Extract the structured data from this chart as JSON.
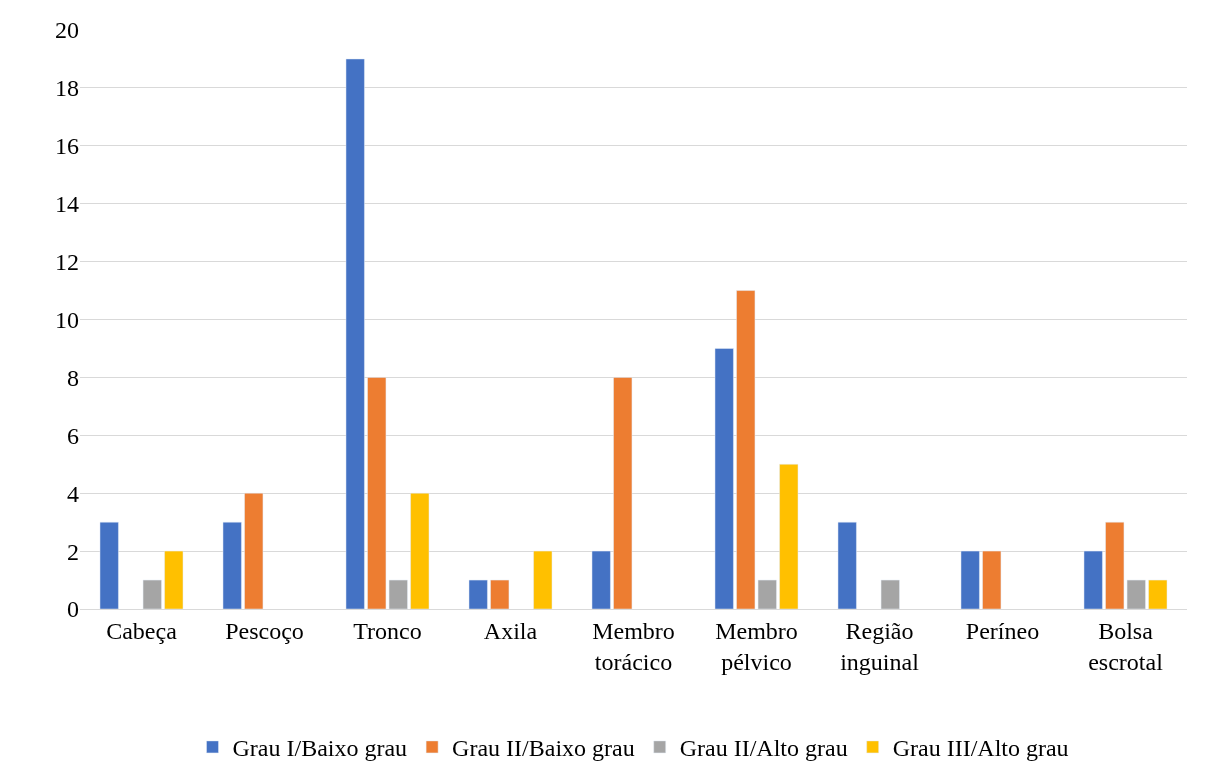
{
  "chart_data": {
    "type": "bar",
    "categories": [
      "Cabeça",
      "Pescoço",
      "Tronco",
      "Axila",
      "Membro torácico",
      "Membro pélvico",
      "Região inguinal",
      "Períneo",
      "Bolsa escrotal"
    ],
    "series": [
      {
        "name": "Grau I/Baixo grau",
        "color": "#4472c4",
        "values": [
          3,
          3,
          19,
          1,
          2,
          9,
          3,
          2,
          2
        ]
      },
      {
        "name": "Grau II/Baixo grau",
        "color": "#ed7d31",
        "values": [
          null,
          4,
          8,
          1,
          8,
          11,
          null,
          2,
          3
        ]
      },
      {
        "name": "Grau II/Alto grau",
        "color": "#a5a5a5",
        "values": [
          1,
          null,
          1,
          null,
          null,
          1,
          1,
          null,
          1
        ]
      },
      {
        "name": "Grau III/Alto grau",
        "color": "#ffc000",
        "values": [
          2,
          null,
          4,
          2,
          null,
          5,
          null,
          null,
          1
        ]
      }
    ],
    "ylim": [
      0,
      20
    ],
    "yticks": [
      0,
      2,
      4,
      6,
      8,
      10,
      12,
      14,
      16,
      18,
      20
    ],
    "grid": "y",
    "legend": "bottom"
  }
}
